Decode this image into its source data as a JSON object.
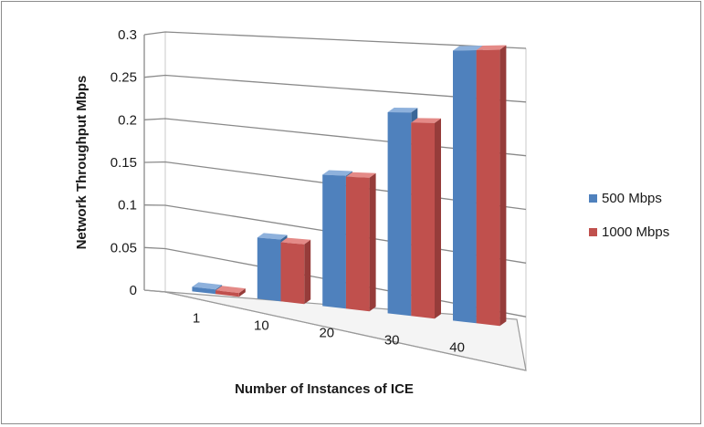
{
  "chart_data": {
    "type": "bar",
    "title": "",
    "xlabel": "Number of Instances of ICE",
    "ylabel": "Network Throughput Mbps",
    "categories": [
      "1",
      "10",
      "20",
      "30",
      "40"
    ],
    "series": [
      {
        "name": "500 Mbps",
        "values": [
          0.005,
          0.065,
          0.135,
          0.2,
          0.26
        ],
        "color": "#4f81bd"
      },
      {
        "name": "1000 Mbps",
        "values": [
          0.004,
          0.062,
          0.134,
          0.19,
          0.26
        ],
        "color": "#c0504d"
      }
    ],
    "ylim": [
      0,
      0.3
    ],
    "yticks": [
      "0",
      "0.05",
      "0.1",
      "0.15",
      "0.2",
      "0.25",
      "0.3"
    ],
    "grid": true,
    "legend": "right",
    "style": "3d-perspective"
  }
}
